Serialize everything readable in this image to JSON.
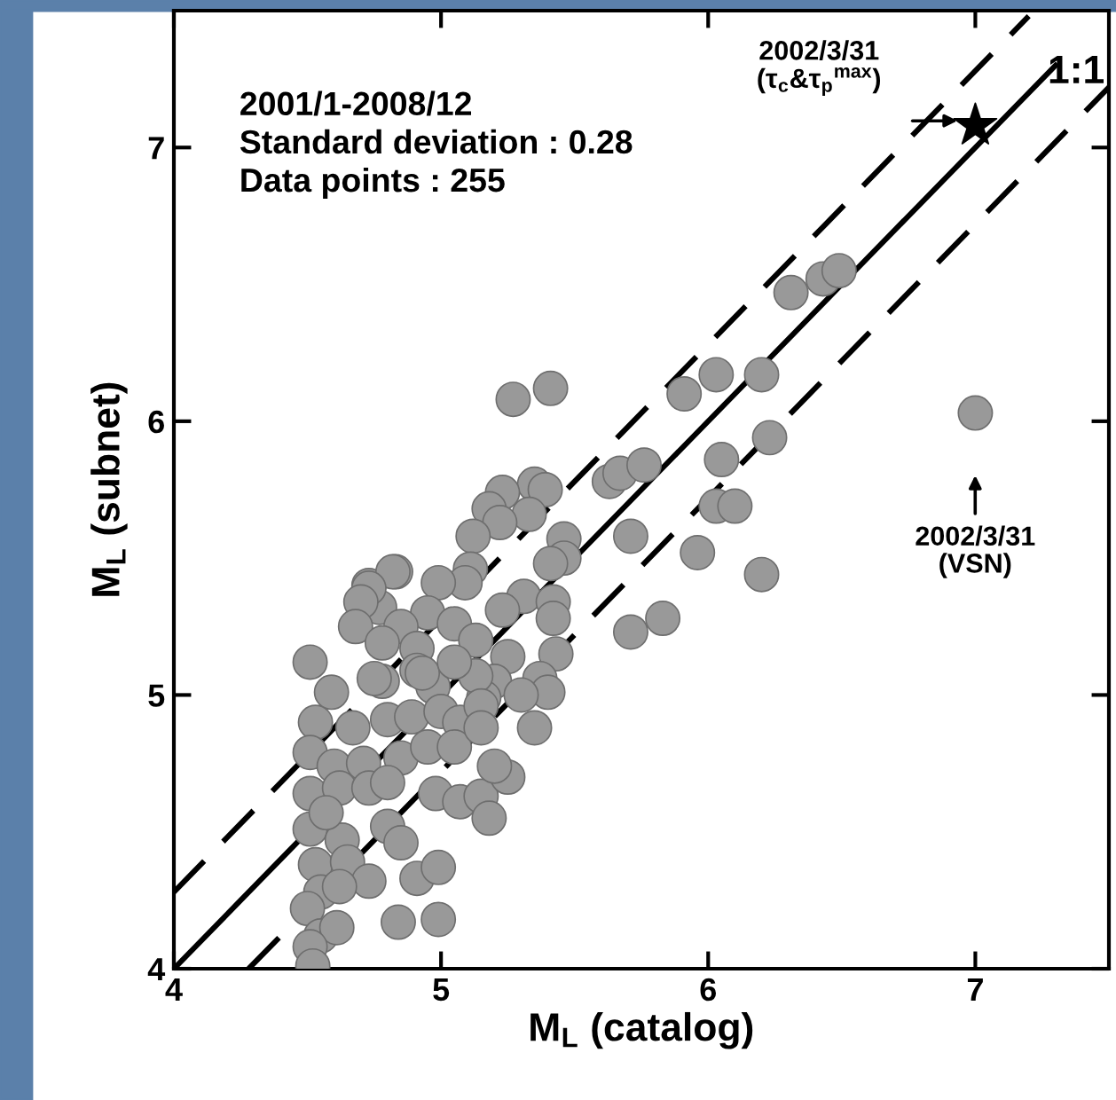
{
  "chart_data": {
    "type": "scatter",
    "xlabel": "M$_{L}$ (catalog)",
    "ylabel": "M$_{L}$ (subnet)",
    "xlim": [
      4,
      7.5
    ],
    "ylim": [
      4,
      7.5
    ],
    "xticks": [
      4,
      5,
      6,
      7
    ],
    "yticks": [
      4,
      5,
      6,
      7
    ],
    "grid": false,
    "legend": false,
    "series": [
      {
        "marker": "circle",
        "color": "#999999",
        "x": [
          5.27,
          5.41,
          6.31,
          6.43,
          6.49,
          5.91,
          6.03,
          6.2,
          6.23,
          6.05,
          6.03,
          6.1,
          5.96,
          6.2,
          5.63,
          5.67,
          5.76,
          5.71,
          5.83,
          5.71,
          5.35,
          5.39,
          5.23,
          5.18,
          5.33,
          5.22,
          5.12,
          5.46,
          5.46,
          5.41,
          5.11,
          5.09,
          4.99,
          4.83,
          4.73,
          4.77,
          5.31,
          5.23,
          5.42,
          5.42,
          4.95,
          4.85,
          5.05,
          5.13,
          4.91,
          5.43,
          5.37,
          5.4,
          5.25,
          5.2,
          5.16,
          4.78,
          4.97,
          4.91,
          5.13,
          4.82,
          4.73,
          4.7,
          4.68,
          4.78,
          4.51,
          4.59,
          4.75,
          4.93,
          5.05,
          4.53,
          4.67,
          4.8,
          4.89,
          5.0,
          5.07,
          5.15,
          4.51,
          4.6,
          4.71,
          4.85,
          4.95,
          5.05,
          5.15,
          4.51,
          4.62,
          4.73,
          4.8,
          4.98,
          5.07,
          5.15,
          4.51,
          4.63,
          4.8,
          4.85,
          4.57,
          4.53,
          4.65,
          4.73,
          4.91,
          4.99,
          4.55,
          4.62,
          4.5,
          4.55,
          4.61,
          4.51,
          4.52,
          4.84,
          5.25,
          5.2,
          5.35,
          4.99,
          5.3,
          5.18
        ],
        "values": [
          6.08,
          6.12,
          6.47,
          6.52,
          6.55,
          6.1,
          6.17,
          6.17,
          5.94,
          5.86,
          5.69,
          5.69,
          5.52,
          5.44,
          5.78,
          5.81,
          5.84,
          5.58,
          5.28,
          5.23,
          5.77,
          5.75,
          5.74,
          5.68,
          5.66,
          5.63,
          5.58,
          5.57,
          5.5,
          5.48,
          5.46,
          5.41,
          5.41,
          5.45,
          5.4,
          5.32,
          5.36,
          5.31,
          5.34,
          5.28,
          5.3,
          5.25,
          5.26,
          5.2,
          5.17,
          5.15,
          5.06,
          5.01,
          5.14,
          5.05,
          4.99,
          5.05,
          5.03,
          5.09,
          5.07,
          5.45,
          5.39,
          5.34,
          5.25,
          5.19,
          5.12,
          5.01,
          5.06,
          5.08,
          5.12,
          4.9,
          4.88,
          4.91,
          4.92,
          4.94,
          4.9,
          4.96,
          4.79,
          4.74,
          4.75,
          4.77,
          4.81,
          4.81,
          4.88,
          4.64,
          4.66,
          4.66,
          4.68,
          4.64,
          4.61,
          4.63,
          4.51,
          4.47,
          4.52,
          4.46,
          4.57,
          4.38,
          4.39,
          4.32,
          4.33,
          4.37,
          4.28,
          4.3,
          4.22,
          4.12,
          4.15,
          4.08,
          4.01,
          4.17,
          4.7,
          4.74,
          4.88,
          4.18,
          5.0,
          4.55
        ]
      },
      {
        "marker": "circle",
        "color": "#999999",
        "x": [
          7.0
        ],
        "values": [
          6.03
        ]
      },
      {
        "marker": "star",
        "color": "#000000",
        "x": [
          7.0
        ],
        "values": [
          7.08
        ]
      },
      {
        "type": "line",
        "line_style": "solid",
        "color": "#000000",
        "x": [
          4,
          7.3
        ],
        "values": [
          4,
          7.3
        ]
      },
      {
        "type": "line",
        "line_style": "dashed",
        "color": "#000000",
        "x": [
          4,
          7.2
        ],
        "values": [
          4.28,
          7.48
        ]
      },
      {
        "type": "line",
        "line_style": "dashed",
        "color": "#000000",
        "x": [
          4.28,
          7.5
        ],
        "values": [
          4,
          7.22
        ]
      }
    ],
    "annotations": [
      "2001/1-2008/12",
      "Standard deviation : 0.28",
      "Data points : 255",
      "1:1",
      "2002/3/31\n(τ$_{c}$&τ$_{p}$$^{max}$)",
      "2002/3/31\n(VSN)"
    ]
  }
}
